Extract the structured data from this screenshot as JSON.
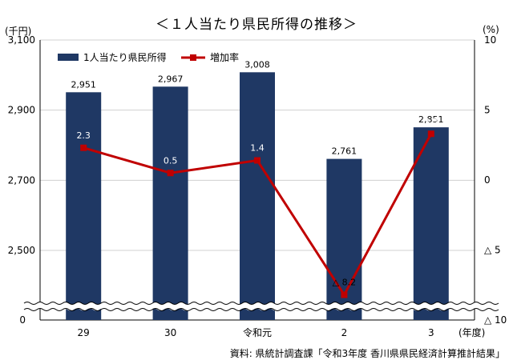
{
  "chart_data": {
    "type": "bar",
    "title": "＜１人当たり県民所得の推移＞",
    "categories": [
      "29",
      "30",
      "令和元",
      "2",
      "3"
    ],
    "x_unit": "(年度)",
    "series": [
      {
        "name": "1人当たり県民所得",
        "type": "bar",
        "axis": "left",
        "values": [
          2951,
          2967,
          3008,
          2761,
          2851
        ],
        "labels": [
          "2,951",
          "2,967",
          "3,008",
          "2,761",
          "2,851"
        ],
        "color": "#1f3864"
      },
      {
        "name": "増加率",
        "type": "line",
        "axis": "right",
        "values": [
          2.3,
          0.5,
          1.4,
          -8.2,
          3.3
        ],
        "labels": [
          "2.3",
          "0.5",
          "1.4",
          "△ 8.2",
          "3.3"
        ],
        "color": "#c00000"
      }
    ],
    "y_left": {
      "unit": "(千円)",
      "ticks": [
        0,
        2500,
        2700,
        2900,
        3100
      ],
      "tick_labels": [
        "0",
        "2,500",
        "2,700",
        "2,900",
        "3,100"
      ],
      "break": true,
      "range_above_break": [
        2500,
        3100
      ]
    },
    "y_right": {
      "unit": "(%)",
      "range": [
        -10,
        10
      ],
      "ticks": [
        -10,
        -5,
        0,
        5,
        10
      ],
      "tick_labels": [
        "△ 10",
        "△ 5",
        "0",
        "5",
        "10"
      ]
    },
    "grid": true,
    "legend": "top-left",
    "source": "資料: 県統計調査課「令和3年度 香川県県民経済計算推計結果」"
  }
}
